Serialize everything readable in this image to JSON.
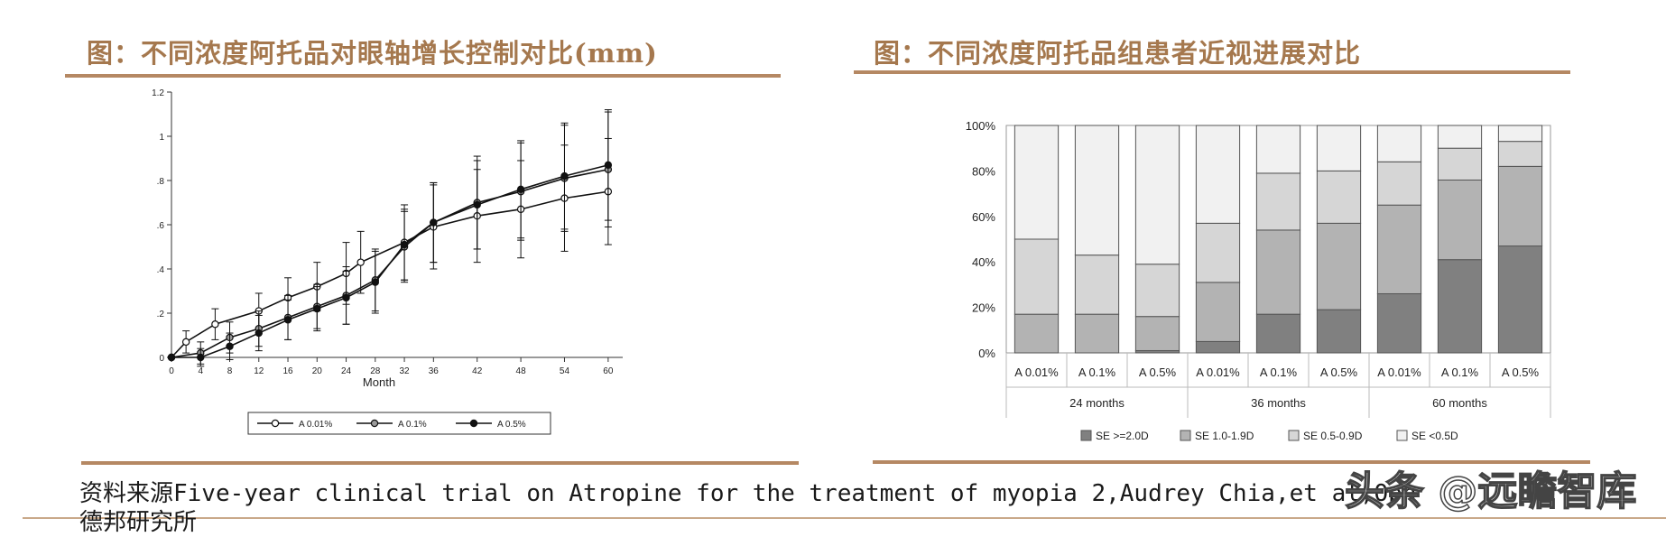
{
  "left_panel": {
    "title": "图：不同浓度阿托品对眼轴增长控制对比(mm)"
  },
  "right_panel": {
    "title": "图：不同浓度阿托品组患者近视进展对比"
  },
  "source": {
    "line1": "资料来源Five-year clinical trial on Atropine for the treatment of myopia 2,Audrey Chia,et al,Oph",
    "line2": "德邦研究所"
  },
  "watermark": "头条 @远瞻智库",
  "colors": {
    "title": "#a5784e",
    "rule": "#b58863",
    "se_ge_2": "#808080",
    "se_1_19": "#b3b3b3",
    "se_05_09": "#d6d6d6",
    "se_lt_05": "#f1f1f1"
  },
  "chart_data": [
    {
      "type": "line",
      "title": "",
      "xlabel": "Month",
      "ylabel": "",
      "xlim": [
        0,
        62
      ],
      "ylim": [
        0,
        1.2
      ],
      "x_ticks": [
        "0",
        "4",
        "8",
        "12",
        "16",
        "20",
        "24",
        "28",
        "32",
        "36",
        "42",
        "48",
        "54",
        "60"
      ],
      "y_ticks": [
        "0",
        ".2",
        ".4",
        ".6",
        ".8",
        "1",
        "1.2"
      ],
      "legend_position": "bottom",
      "series": [
        {
          "name": "A 0.01%",
          "marker": "open-circle",
          "x": [
            0,
            2,
            6,
            12,
            16,
            20,
            24,
            26,
            32,
            36,
            42,
            48,
            54,
            60
          ],
          "y": [
            0,
            0.07,
            0.15,
            0.21,
            0.27,
            0.32,
            0.38,
            0.43,
            0.52,
            0.59,
            0.64,
            0.67,
            0.72,
            0.75
          ],
          "err": [
            0,
            0.05,
            0.07,
            0.08,
            0.09,
            0.11,
            0.14,
            0.14,
            0.17,
            0.19,
            0.21,
            0.22,
            0.24,
            0.24
          ]
        },
        {
          "name": "A 0.1%",
          "marker": "gray-circle",
          "x": [
            0,
            4,
            8,
            12,
            16,
            20,
            24,
            28,
            32,
            36,
            42,
            48,
            54,
            60
          ],
          "y": [
            0,
            0.02,
            0.09,
            0.13,
            0.18,
            0.23,
            0.28,
            0.35,
            0.5,
            0.61,
            0.7,
            0.75,
            0.81,
            0.85
          ],
          "err": [
            0,
            0.05,
            0.07,
            0.08,
            0.1,
            0.1,
            0.13,
            0.14,
            0.16,
            0.18,
            0.21,
            0.22,
            0.24,
            0.26
          ]
        },
        {
          "name": "A 0.5%",
          "marker": "filled-circle",
          "x": [
            0,
            4,
            8,
            12,
            16,
            20,
            24,
            28,
            32,
            36,
            42,
            48,
            54,
            60
          ],
          "y": [
            0,
            0,
            0.05,
            0.11,
            0.17,
            0.22,
            0.27,
            0.34,
            0.51,
            0.61,
            0.69,
            0.76,
            0.82,
            0.87
          ],
          "err": [
            0,
            0.04,
            0.06,
            0.08,
            0.09,
            0.1,
            0.12,
            0.14,
            0.16,
            0.18,
            0.2,
            0.22,
            0.24,
            0.25
          ]
        }
      ]
    },
    {
      "type": "bar",
      "stacked": true,
      "title": "",
      "ylim": [
        0,
        100
      ],
      "y_ticks": [
        "0%",
        "20%",
        "40%",
        "60%",
        "80%",
        "100%"
      ],
      "categories": [
        "A 0.01%",
        "A 0.1%",
        "A 0.5%",
        "A 0.01%",
        "A 0.1%",
        "A 0.5%",
        "A 0.01%",
        "A 0.1%",
        "A 0.5%"
      ],
      "groups": [
        "24 months",
        "36 months",
        "60 months"
      ],
      "legend_position": "bottom",
      "series": [
        {
          "name": "SE >=2.0D",
          "values": [
            0,
            0,
            1,
            5,
            17,
            19,
            26,
            41,
            47
          ]
        },
        {
          "name": "SE 1.0-1.9D",
          "values": [
            17,
            17,
            15,
            26,
            37,
            38,
            39,
            35,
            35
          ]
        },
        {
          "name": "SE 0.5-0.9D",
          "values": [
            33,
            26,
            23,
            26,
            25,
            23,
            19,
            14,
            11
          ]
        },
        {
          "name": "SE <0.5D",
          "values": [
            50,
            57,
            61,
            43,
            21,
            20,
            16,
            10,
            7
          ]
        }
      ]
    }
  ]
}
